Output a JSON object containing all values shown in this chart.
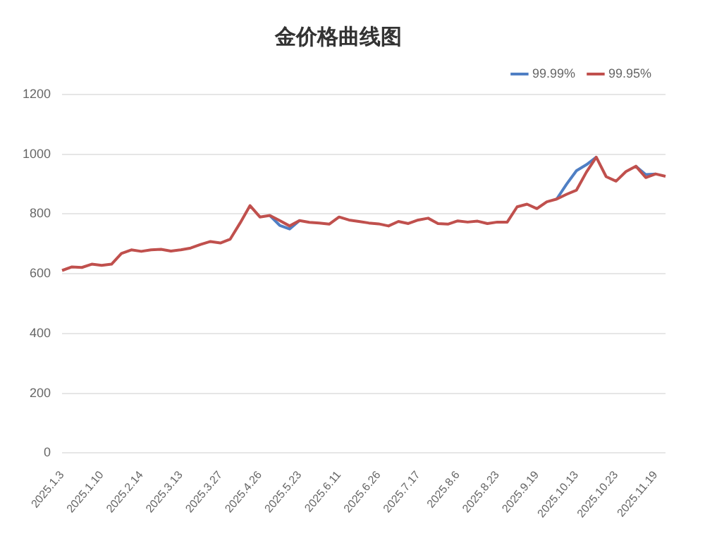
{
  "chart_data": {
    "type": "line",
    "title": "金价格曲线图",
    "categories": [
      "2025.1.3",
      null,
      null,
      null,
      "2025.1.10",
      null,
      null,
      null,
      "2025.2.14",
      null,
      null,
      null,
      "2025.3.13",
      null,
      null,
      null,
      "2025.3.27",
      null,
      null,
      null,
      "2025.4.26",
      null,
      null,
      null,
      "2025.5.23",
      null,
      null,
      null,
      "2025.6.11",
      null,
      null,
      null,
      "2025.6.26",
      null,
      null,
      null,
      "2025.7.17",
      null,
      null,
      null,
      "2025.8.6",
      null,
      null,
      null,
      "2025.8.23",
      null,
      null,
      null,
      "2025.9.19",
      null,
      null,
      null,
      "2025.10.13",
      null,
      null,
      null,
      "2025.10.23",
      null,
      null,
      null,
      "2025.11.19",
      null
    ],
    "series": [
      {
        "name": "99.99%",
        "color": "#4f7fc4",
        "values": [
          null,
          null,
          null,
          null,
          null,
          null,
          null,
          null,
          null,
          null,
          null,
          null,
          null,
          null,
          null,
          null,
          null,
          null,
          null,
          null,
          null,
          795,
          762,
          750,
          778,
          null,
          null,
          null,
          null,
          null,
          null,
          null,
          null,
          null,
          null,
          null,
          null,
          null,
          null,
          null,
          null,
          null,
          null,
          null,
          null,
          null,
          null,
          null,
          null,
          null,
          850,
          900,
          945,
          965,
          990,
          null,
          null,
          null,
          960,
          932,
          934,
          null
        ]
      },
      {
        "name": "99.95%",
        "color": "#c0504d",
        "values": [
          611,
          623,
          621,
          632,
          628,
          632,
          668,
          680,
          675,
          680,
          682,
          676,
          680,
          686,
          698,
          708,
          703,
          716,
          770,
          828,
          790,
          795,
          778,
          760,
          778,
          772,
          770,
          766,
          790,
          780,
          775,
          770,
          767,
          760,
          775,
          768,
          780,
          786,
          768,
          766,
          777,
          773,
          776,
          768,
          773,
          773,
          824,
          833,
          818,
          841,
          850,
          866,
          880,
          940,
          990,
          925,
          910,
          942,
          960,
          922,
          934,
          926
        ]
      }
    ],
    "ylim": [
      0,
      1200
    ],
    "yticks": [
      0,
      200,
      400,
      600,
      800,
      1000,
      1200
    ],
    "grid": "y",
    "legend": "top right",
    "marker": "none",
    "line_style": "solid"
  }
}
